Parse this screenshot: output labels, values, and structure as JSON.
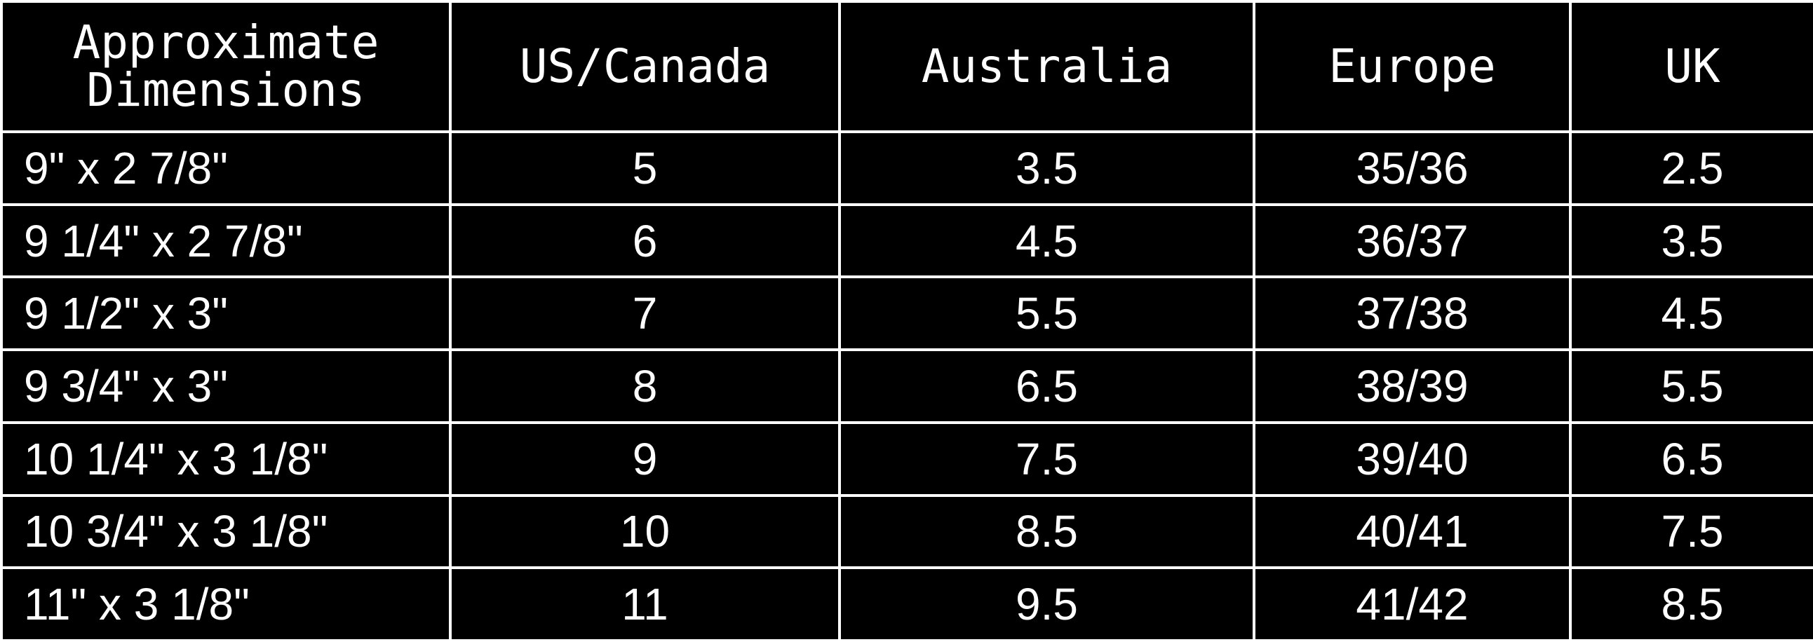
{
  "table": {
    "headers": [
      {
        "lines": [
          "Approximate",
          "Dimensions"
        ]
      },
      {
        "lines": [
          "US/Canada"
        ]
      },
      {
        "lines": [
          "Australia"
        ]
      },
      {
        "lines": [
          "Europe"
        ]
      },
      {
        "lines": [
          "UK"
        ]
      }
    ],
    "rows": [
      [
        "9\" x  2 7/8\"",
        "5",
        "3.5",
        "35/36",
        "2.5"
      ],
      [
        "9 1/4\" x  2 7/8\"",
        "6",
        "4.5",
        "36/37",
        "3.5"
      ],
      [
        "9 1/2\" x  3\"",
        "7",
        "5.5",
        "37/38",
        "4.5"
      ],
      [
        "9 3/4\" x  3\"",
        "8",
        "6.5",
        "38/39",
        "5.5"
      ],
      [
        "10 1/4\" x  3 1/8\"",
        "9",
        "7.5",
        "39/40",
        "6.5"
      ],
      [
        "10 3/4\" x  3 1/8\"",
        "10",
        "8.5",
        "40/41",
        "7.5"
      ],
      [
        "11\" x  3 1/8\"",
        "11",
        "9.5",
        "41/42",
        "8.5"
      ]
    ]
  },
  "colors": {
    "background": "#000000",
    "text": "#ffffff",
    "grid": "#ffffff"
  }
}
